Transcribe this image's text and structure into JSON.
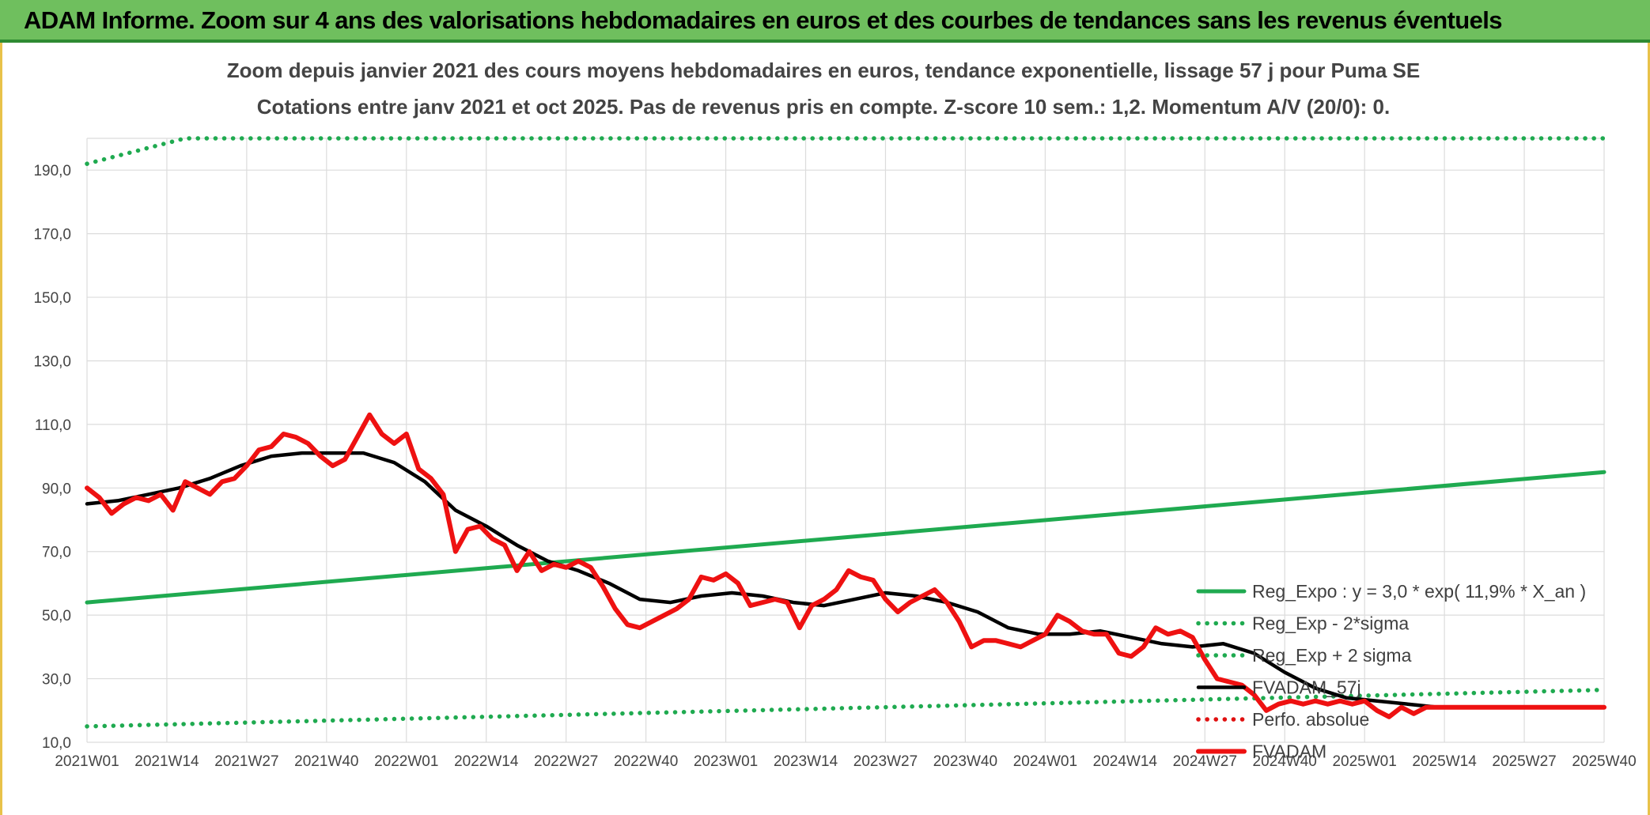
{
  "banner": {
    "title": "ADAM Informe. Zoom sur 4 ans des valorisations hebdomadaires en euros et des courbes de tendances sans les revenus éventuels",
    "background": "#6fbf5e"
  },
  "chart_data": {
    "type": "line",
    "title": "Zoom depuis janvier 2021 des cours moyens hebdomadaires en euros, tendance exponentielle, lissage 57 j pour Puma SE",
    "subtitle": "Cotations entre janv 2021 et oct 2025. Pas de revenus pris en compte. Z-score 10 sem.: 1,2. Momentum A/V (20/0): 0.",
    "xlabel": "",
    "ylabel": "",
    "ylim": [
      10,
      200
    ],
    "grid": true,
    "legend_position": "right",
    "x_ticks": [
      "2021W01",
      "2021W14",
      "2021W27",
      "2021W40",
      "2022W01",
      "2022W14",
      "2022W27",
      "2022W40",
      "2023W01",
      "2023W14",
      "2023W27",
      "2023W40",
      "2024W01",
      "2024W14",
      "2024W27",
      "2024W40",
      "2025W01",
      "2025W14",
      "2025W27",
      "2025W40"
    ],
    "y_ticks": [
      "10,0",
      "30,0",
      "50,0",
      "70,0",
      "90,0",
      "110,0",
      "130,0",
      "150,0",
      "170,0",
      "190,0"
    ],
    "y_tick_values": [
      10,
      30,
      50,
      70,
      90,
      110,
      130,
      150,
      170,
      190
    ],
    "series": [
      {
        "name": "Reg_Expo : y = 3,0 * exp( 11,9% *  X_an )",
        "color": "#1faa50",
        "style": "solid",
        "x": [
          0,
          247
        ],
        "values": [
          54,
          95
        ]
      },
      {
        "name": "Reg_Exp - 2*sigma",
        "color": "#1faa50",
        "style": "dotted",
        "x": [
          0,
          247
        ],
        "values": [
          15,
          26.5
        ]
      },
      {
        "name": "Reg_Exp + 2 sigma",
        "color": "#1faa50",
        "style": "dotted",
        "x": [
          0,
          4,
          8,
          12,
          16,
          20,
          247
        ],
        "values": [
          192,
          194,
          196,
          198,
          200,
          200,
          200
        ]
      },
      {
        "name": "FVADAM_57j",
        "color": "#000000",
        "style": "solid",
        "x": [
          0,
          5,
          10,
          15,
          20,
          25,
          30,
          35,
          40,
          45,
          50,
          55,
          60,
          65,
          70,
          75,
          80,
          85,
          90,
          95,
          100,
          105,
          110,
          115,
          120,
          125,
          130,
          135,
          140,
          145,
          150,
          155,
          160,
          165,
          170,
          175,
          180,
          185,
          190,
          195,
          200,
          205,
          210,
          215,
          220,
          225,
          230,
          235,
          240,
          247
        ],
        "values": [
          85,
          86,
          88,
          90,
          93,
          97,
          100,
          101,
          101,
          101,
          98,
          92,
          83,
          78,
          72,
          67,
          64,
          60,
          55,
          54,
          56,
          57,
          56,
          54,
          53,
          55,
          57,
          56,
          54,
          51,
          46,
          44,
          44,
          45,
          43,
          41,
          40,
          41,
          38,
          32,
          27,
          24,
          23,
          22,
          21,
          21,
          21,
          21,
          21,
          21
        ]
      },
      {
        "name": "Perfo. absolue",
        "color": "#e01010",
        "style": "dotted",
        "x": [],
        "values": []
      },
      {
        "name": "FVADAM",
        "color": "#ee1111",
        "style": "solid",
        "x": [
          0,
          2,
          4,
          6,
          8,
          10,
          12,
          14,
          16,
          18,
          20,
          22,
          24,
          26,
          28,
          30,
          32,
          34,
          36,
          38,
          40,
          42,
          44,
          46,
          48,
          50,
          52,
          54,
          56,
          58,
          60,
          62,
          64,
          66,
          68,
          70,
          72,
          74,
          76,
          78,
          80,
          82,
          84,
          86,
          88,
          90,
          92,
          94,
          96,
          98,
          100,
          102,
          104,
          106,
          108,
          110,
          112,
          114,
          116,
          118,
          120,
          122,
          124,
          126,
          128,
          130,
          132,
          134,
          136,
          138,
          140,
          142,
          144,
          146,
          148,
          150,
          152,
          154,
          156,
          158,
          160,
          162,
          164,
          166,
          168,
          170,
          172,
          174,
          176,
          178,
          180,
          182,
          184,
          186,
          188,
          190,
          192,
          194,
          196,
          198,
          200,
          202,
          204,
          206,
          208,
          210,
          212,
          214,
          216,
          218,
          220,
          222,
          224,
          226,
          228,
          230,
          232,
          234,
          236,
          238,
          240,
          242,
          244,
          246,
          247
        ],
        "values": [
          90,
          87,
          82,
          85,
          87,
          86,
          88,
          83,
          92,
          90,
          88,
          92,
          93,
          97,
          102,
          103,
          107,
          106,
          104,
          100,
          97,
          99,
          106,
          113,
          107,
          104,
          107,
          96,
          93,
          88,
          70,
          77,
          78,
          74,
          72,
          64,
          70,
          64,
          66,
          65,
          67,
          65,
          59,
          52,
          47,
          46,
          48,
          50,
          52,
          55,
          62,
          61,
          63,
          60,
          53,
          54,
          55,
          54,
          46,
          53,
          55,
          58,
          64,
          62,
          61,
          55,
          51,
          54,
          56,
          58,
          54,
          48,
          40,
          42,
          42,
          41,
          40,
          42,
          44,
          50,
          48,
          45,
          44,
          44,
          38,
          37,
          40,
          46,
          44,
          45,
          43,
          36,
          30,
          29,
          28,
          25,
          20,
          22,
          23,
          22,
          23,
          22,
          23,
          22,
          23,
          20,
          18,
          21,
          19,
          21,
          21,
          21,
          21,
          21,
          21,
          21,
          21,
          21,
          21,
          21,
          21,
          21,
          21,
          21,
          21
        ]
      }
    ]
  }
}
